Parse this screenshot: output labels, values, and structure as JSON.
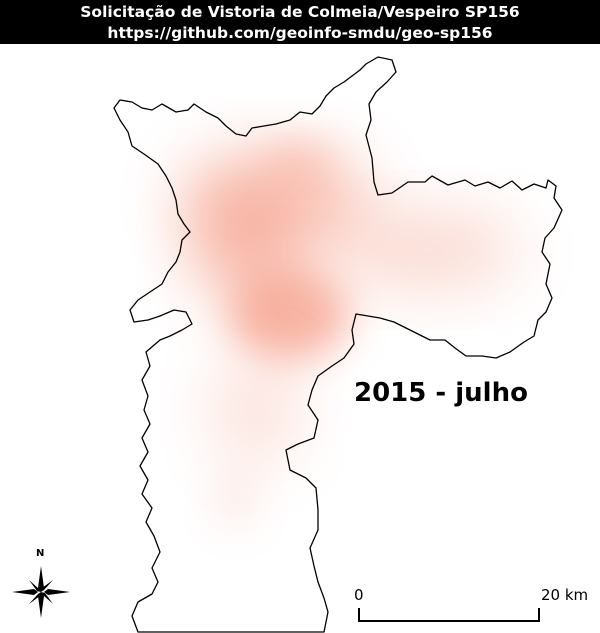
{
  "header": {
    "title": "Solicitação de Vistoria de Colmeia/Vespeiro SP156",
    "url": "https://github.com/geoinfo-smdu/geo-sp156"
  },
  "map": {
    "period_label": "2015 - julho",
    "heat_color": "#f27b5e",
    "boundary_color": "#000000",
    "north_label": "N",
    "scale_bar": {
      "start_label": "0",
      "end_label": "20 km"
    }
  }
}
